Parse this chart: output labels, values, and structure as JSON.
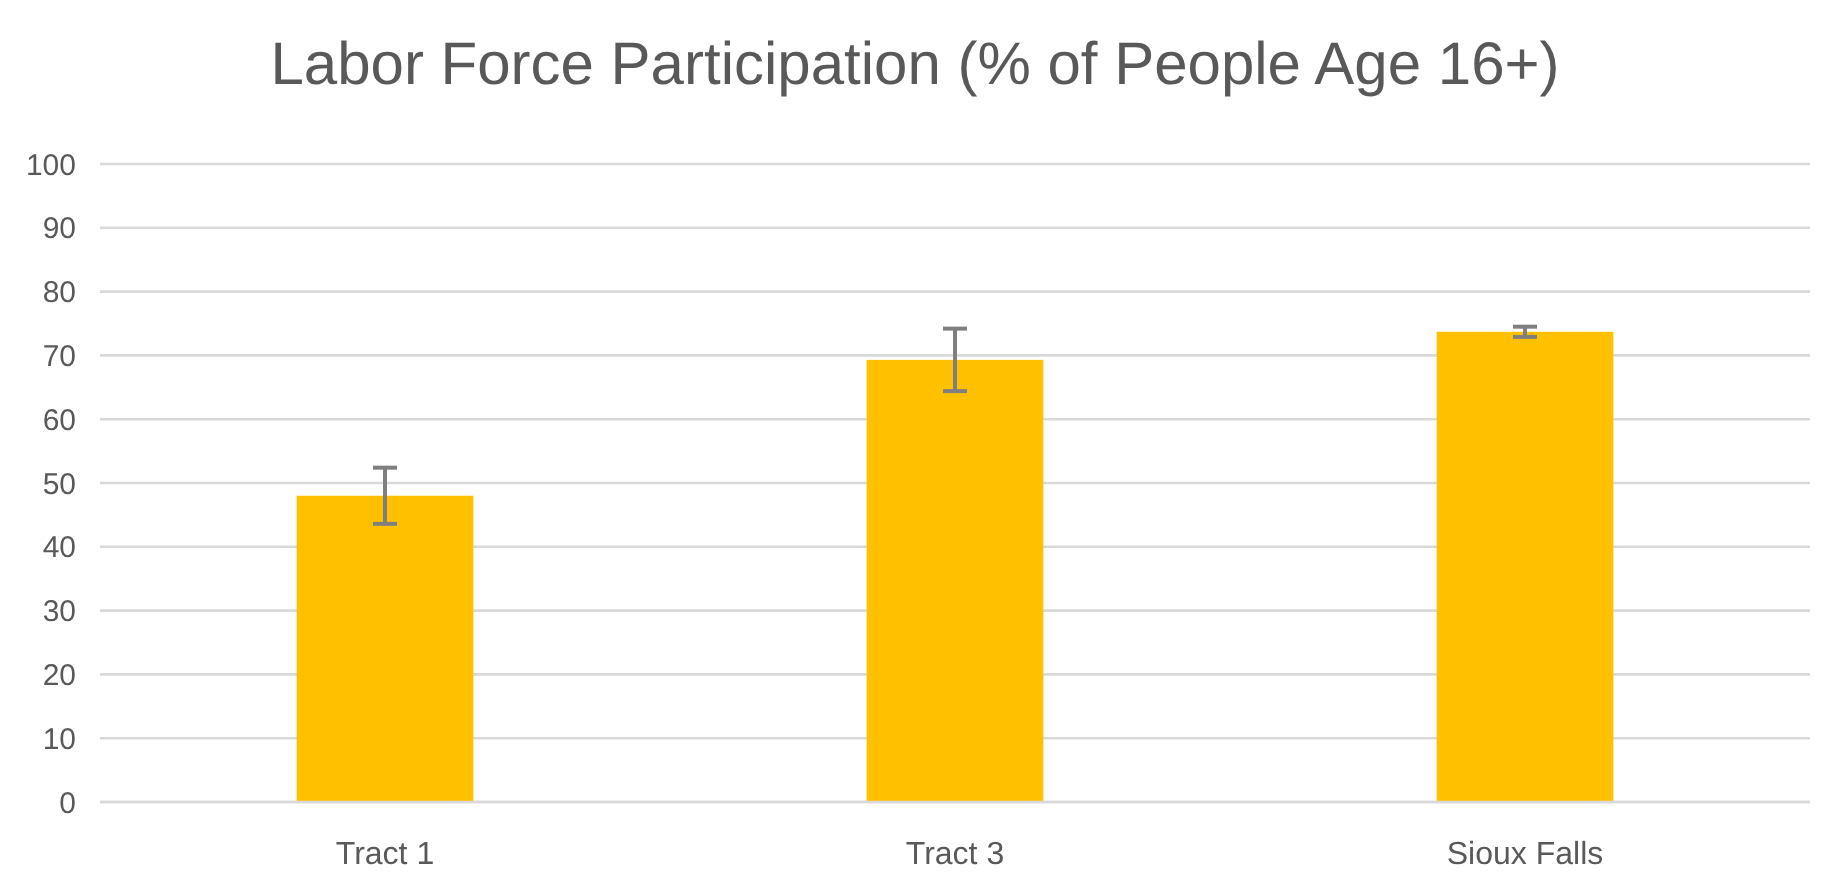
{
  "chart_data": {
    "type": "bar",
    "title": "Labor Force Participation (% of People Age 16+)",
    "categories": [
      "Tract 1",
      "Tract 3",
      "Sioux Falls"
    ],
    "values": [
      48,
      69.3,
      73.7
    ],
    "errors": [
      4.4,
      4.9,
      0.8
    ],
    "color": "#ffc000",
    "ylim": [
      0,
      100
    ],
    "yticks": [
      0,
      10,
      20,
      30,
      40,
      50,
      60,
      70,
      80,
      90,
      100
    ],
    "grid": "y"
  }
}
